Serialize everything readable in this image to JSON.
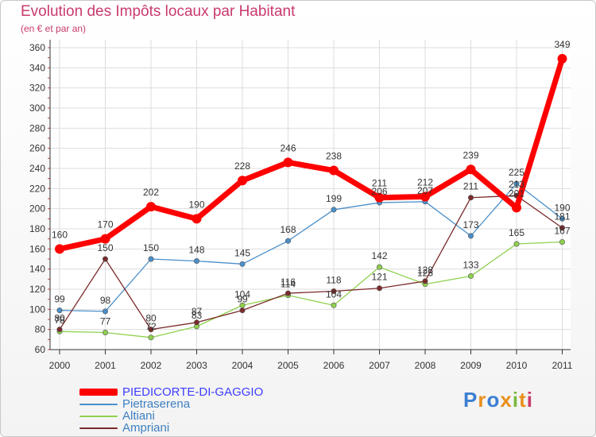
{
  "chart_data": {
    "type": "line",
    "title": "Evolution des Impôts locaux par Habitant",
    "subtitle": "(en € et par an)",
    "xlabel": "",
    "ylabel": "",
    "x": [
      "2000",
      "2001",
      "2002",
      "2003",
      "2004",
      "2005",
      "2006",
      "2007",
      "2008",
      "2009",
      "2010",
      "2011"
    ],
    "ylim": [
      60,
      360
    ],
    "yticks": [
      60,
      80,
      100,
      120,
      140,
      160,
      180,
      200,
      220,
      240,
      260,
      280,
      300,
      320,
      340,
      360
    ],
    "grid": true,
    "legend_position": "bottom-left",
    "series": [
      {
        "name": "PIEDICORTE-DI-GAGGIO",
        "color": "#ff0000",
        "values": [
          160,
          170,
          202,
          190,
          228,
          246,
          238,
          211,
          212,
          239,
          201,
          349
        ],
        "labels": [
          "160",
          "170",
          "202",
          "190",
          "228",
          "246",
          "238",
          "211",
          "212",
          "239",
          "201",
          "349"
        ]
      },
      {
        "name": "Pietraserena",
        "color": "#4a8fc9",
        "values": [
          99,
          98,
          150,
          148,
          145,
          168,
          199,
          206,
          207,
          173,
          225,
          190
        ],
        "labels": [
          "99",
          "98",
          "150",
          "148",
          "145",
          "168",
          "199",
          "206",
          "207",
          "173",
          "225",
          "190"
        ]
      },
      {
        "name": "Altiani",
        "color": "#8fd14f",
        "values": [
          78,
          77,
          72,
          83,
          104,
          114,
          104,
          142,
          125,
          133,
          165,
          167
        ],
        "labels": [
          "78",
          "77",
          "72",
          "83",
          "104",
          "114",
          "104",
          "142",
          "125",
          "133",
          "165",
          "167"
        ]
      },
      {
        "name": "Ampriani",
        "color": "#7a2a2a",
        "values": [
          80,
          150,
          80,
          87,
          99,
          116,
          118,
          121,
          128,
          211,
          213,
          181
        ],
        "labels": [
          "80",
          "150",
          "80",
          "87",
          "99",
          "116",
          "118",
          "121",
          "128",
          "211",
          "213",
          "181"
        ]
      }
    ]
  },
  "logo": {
    "text": "Proxiti",
    "letters": [
      "P",
      "r",
      "o",
      "x",
      "i",
      "t",
      "i"
    ],
    "colors": [
      "#3b7fd1",
      "#e8901c",
      "#3b7fd1",
      "#e8901c",
      "#7ab93a",
      "#e8901c",
      "#c93a6e"
    ]
  }
}
